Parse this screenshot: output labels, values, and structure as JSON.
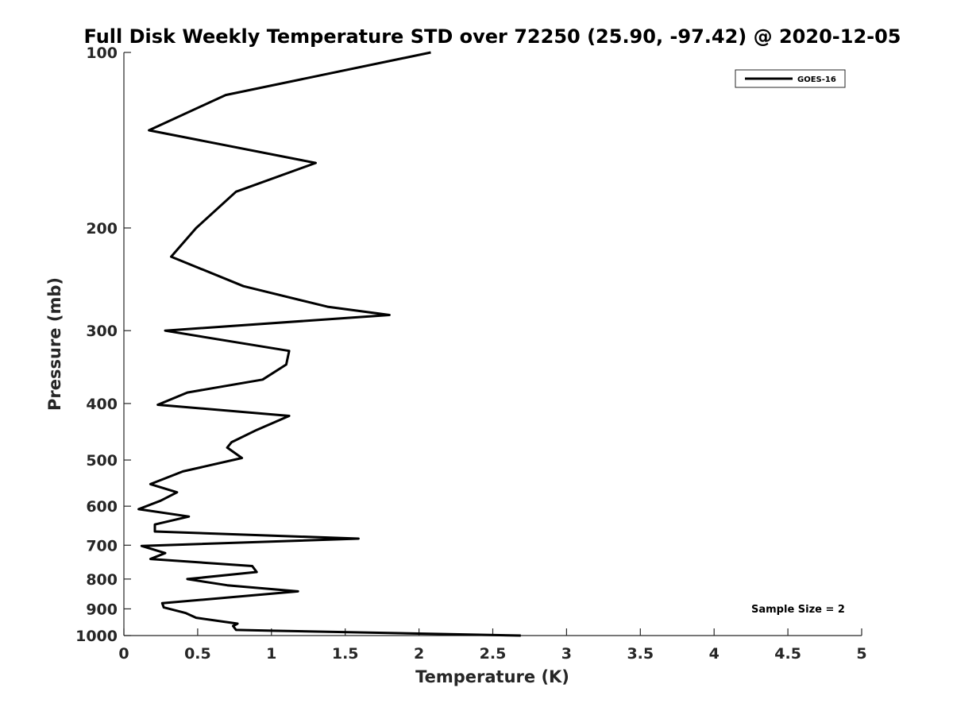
{
  "chart_data": {
    "type": "line",
    "title": "Full Disk Weekly Temperature STD over 72250 (25.90, -97.42) @ 2020-12-05",
    "xlabel": "Temperature (K)",
    "ylabel": "Pressure (mb)",
    "xlim": [
      0,
      5
    ],
    "ylim": [
      100,
      1000
    ],
    "y_scale": "log",
    "y_reversed": true,
    "x_ticks": [
      0,
      0.5,
      1,
      1.5,
      2,
      2.5,
      3,
      3.5,
      4,
      4.5,
      5
    ],
    "x_tick_labels": [
      "0",
      "0.5",
      "1",
      "1.5",
      "2",
      "2.5",
      "3",
      "3.5",
      "4",
      "4.5",
      "5"
    ],
    "y_ticks": [
      100,
      200,
      300,
      400,
      500,
      600,
      700,
      800,
      900,
      1000
    ],
    "y_tick_labels": [
      "100",
      "200",
      "300",
      "400",
      "500",
      "600",
      "700",
      "800",
      "900",
      "1000"
    ],
    "grid": false,
    "legend_position": "top-right",
    "annotation": "Sample Size = 2",
    "series": [
      {
        "name": "GOES-16",
        "color": "#000000",
        "points": [
          [
            2.08,
            100
          ],
          [
            0.69,
            118.3
          ],
          [
            0.17,
            136
          ],
          [
            1.3,
            154.7
          ],
          [
            0.76,
            173.3
          ],
          [
            0.49,
            200
          ],
          [
            0.32,
            224
          ],
          [
            0.81,
            251.7
          ],
          [
            1.38,
            273
          ],
          [
            1.8,
            282
          ],
          [
            0.28,
            300
          ],
          [
            1.12,
            325
          ],
          [
            1.1,
            343
          ],
          [
            0.94,
            364
          ],
          [
            0.43,
            383
          ],
          [
            0.23,
            402
          ],
          [
            1.12,
            420
          ],
          [
            0.9,
            444
          ],
          [
            0.73,
            466
          ],
          [
            0.7,
            476
          ],
          [
            0.8,
            496
          ],
          [
            0.4,
            523
          ],
          [
            0.18,
            550
          ],
          [
            0.36,
            568
          ],
          [
            0.25,
            587
          ],
          [
            0.1,
            607
          ],
          [
            0.44,
            625
          ],
          [
            0.21,
            645
          ],
          [
            0.21,
            663
          ],
          [
            1.59,
            682
          ],
          [
            0.12,
            702
          ],
          [
            0.28,
            722
          ],
          [
            0.18,
            739
          ],
          [
            0.87,
            760
          ],
          [
            0.9,
            778
          ],
          [
            0.43,
            800
          ],
          [
            0.7,
            820
          ],
          [
            1.18,
            840
          ],
          [
            0.26,
            880
          ],
          [
            0.27,
            895
          ],
          [
            0.42,
            915
          ],
          [
            0.49,
            932
          ],
          [
            0.77,
            954
          ],
          [
            0.74,
            963
          ],
          [
            0.76,
            978
          ],
          [
            1.0,
            981
          ],
          [
            2.69,
            1000
          ]
        ]
      }
    ]
  }
}
